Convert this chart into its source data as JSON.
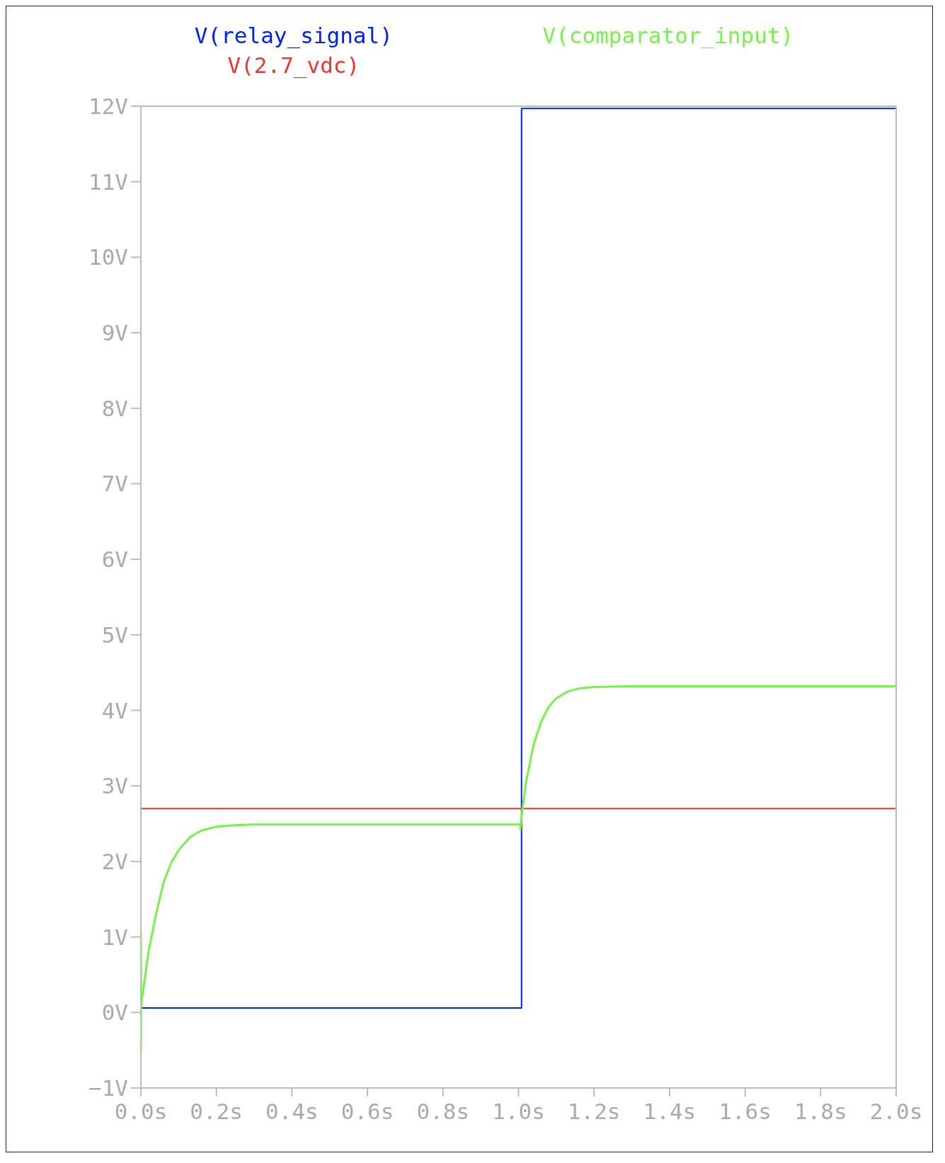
{
  "chart_data": {
    "type": "line",
    "legend": "top",
    "marker": "none",
    "line_style": "solid",
    "xlim": [
      0,
      2
    ],
    "ylim": [
      -1,
      12
    ],
    "xticks": [
      {
        "value": 0,
        "label": "0.0s"
      },
      {
        "value": 0.2,
        "label": "0.2s"
      },
      {
        "value": 0.4,
        "label": "0.4s"
      },
      {
        "value": 0.6,
        "label": "0.6s"
      },
      {
        "value": 0.8,
        "label": "0.8s"
      },
      {
        "value": 1,
        "label": "1.0s"
      },
      {
        "value": 1.2,
        "label": "1.2s"
      },
      {
        "value": 1.4,
        "label": "1.4s"
      },
      {
        "value": 1.6,
        "label": "1.6s"
      },
      {
        "value": 1.8,
        "label": "1.8s"
      },
      {
        "value": 2,
        "label": "2.0s"
      }
    ],
    "yticks": [
      {
        "value": -1,
        "label": "−1V"
      },
      {
        "value": 0,
        "label": "0V"
      },
      {
        "value": 1,
        "label": "1V"
      },
      {
        "value": 2,
        "label": "2V"
      },
      {
        "value": 3,
        "label": "3V"
      },
      {
        "value": 4,
        "label": "4V"
      },
      {
        "value": 5,
        "label": "5V"
      },
      {
        "value": 6,
        "label": "6V"
      },
      {
        "value": 7,
        "label": "7V"
      },
      {
        "value": 8,
        "label": "8V"
      },
      {
        "value": 9,
        "label": "9V"
      },
      {
        "value": 10,
        "label": "10V"
      },
      {
        "value": 11,
        "label": "11V"
      },
      {
        "value": 12,
        "label": "12V"
      }
    ],
    "series": [
      {
        "name": "V(relay_signal)",
        "color": "#0022ee",
        "x": [
          0,
          1.008,
          1.008,
          2
        ],
        "values": [
          0.06,
          0.06,
          11.97,
          11.97
        ]
      },
      {
        "name": "V(2.7_vdc)",
        "color": "#e8372c",
        "x": [
          0,
          2
        ],
        "values": [
          2.7,
          2.7
        ]
      },
      {
        "name": "V(comparator_input)",
        "color": "#77f24a",
        "x": [
          0,
          0,
          0,
          0.001,
          0.02,
          0.04,
          0.06,
          0.08,
          0.1,
          0.13,
          0.16,
          0.2,
          0.25,
          0.3,
          0.6,
          1.0,
          1.005,
          1.005,
          1.008,
          1.02,
          1.04,
          1.06,
          1.08,
          1.1,
          1.13,
          1.16,
          1.2,
          1.3,
          2.0
        ],
        "values": [
          -0.5,
          1.05,
          0.05,
          0.1,
          0.8,
          1.3,
          1.72,
          1.98,
          2.15,
          2.32,
          2.41,
          2.46,
          2.48,
          2.49,
          2.49,
          2.49,
          2.48,
          2.42,
          2.6,
          3.05,
          3.55,
          3.85,
          4.05,
          4.16,
          4.25,
          4.29,
          4.31,
          4.32,
          4.32
        ]
      }
    ]
  }
}
